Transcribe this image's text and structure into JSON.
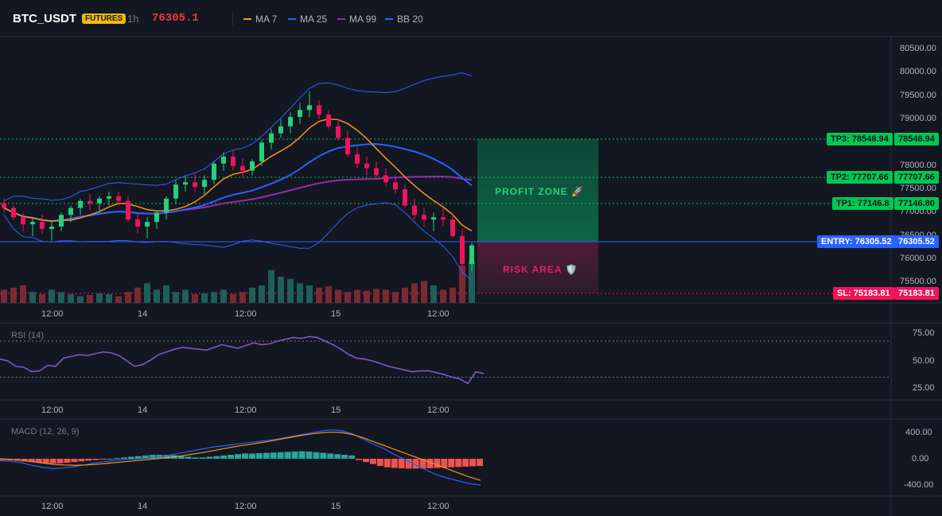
{
  "header": {
    "symbol": "BTC_USDT",
    "badge": "FUTURES",
    "timeframe": "1h",
    "last_price": "76305.1",
    "indicators": [
      {
        "label": "MA 7",
        "color": "#f7931a"
      },
      {
        "label": "MA 25",
        "color": "#2962ff"
      },
      {
        "label": "MA 99",
        "color": "#9c27b0"
      },
      {
        "label": "BB 20",
        "color": "#2962ff"
      }
    ]
  },
  "price_axis": [
    "80500.00",
    "80000.00",
    "79500.00",
    "79000.00",
    "78500.00",
    "78000.00",
    "77500.00",
    "77000.00",
    "76500.00",
    "76000.00",
    "75500.00"
  ],
  "time_labels": [
    "12:00",
    "14",
    "12:00",
    "15",
    "12:00"
  ],
  "levels": {
    "tp3": {
      "tag": "TP3: 78548.94",
      "value": "78548.94"
    },
    "tp2": {
      "tag": "TP2: 77707.66",
      "value": "77707.66"
    },
    "tp1": {
      "tag": "TP1: 77146.8",
      "value": "77146.80"
    },
    "entry": {
      "tag": "ENTRY: 76305.52",
      "value": "76305.52"
    },
    "sl": {
      "tag": "SL: 75183.81",
      "value": "75183.81"
    }
  },
  "zones": {
    "profit": "PROFIT ZONE 🚀",
    "risk": "RISK AREA 🛡️"
  },
  "rsi": {
    "title": "RSI (14)",
    "axis": [
      "75.00",
      "50.00",
      "25.00"
    ],
    "values": [
      50,
      48,
      42,
      41,
      36,
      37,
      43,
      42,
      51,
      53,
      55,
      54,
      56,
      58,
      57,
      54,
      48,
      42,
      44,
      49,
      55,
      58,
      61,
      63,
      62,
      61,
      60,
      63,
      66,
      64,
      62,
      65,
      68,
      66,
      67,
      70,
      72,
      74,
      73,
      75,
      74,
      70,
      66,
      61,
      55,
      51,
      50,
      48,
      45,
      42,
      40,
      38,
      36,
      37,
      37,
      35,
      33,
      30,
      28,
      23,
      36,
      34
    ]
  },
  "macd": {
    "title": "MACD (12, 26, 9)",
    "axis": [
      "400.00",
      "0.00",
      "-400.00"
    ],
    "hist": [
      -20,
      -25,
      -30,
      -40,
      -50,
      -60,
      -65,
      -70,
      -70,
      -60,
      -50,
      -40,
      -30,
      -20,
      -10,
      0,
      10,
      20,
      30,
      40,
      50,
      60,
      60,
      60,
      55,
      45,
      30,
      20,
      20,
      30,
      40,
      50,
      60,
      70,
      80,
      80,
      85,
      90,
      95,
      100,
      105,
      110,
      115,
      110,
      100,
      90,
      80,
      70,
      60,
      50,
      -20,
      -50,
      -80,
      -110,
      -130,
      -140,
      -145,
      -150,
      -150,
      -150,
      -145,
      -140,
      -135,
      -130,
      -125,
      -120,
      -115,
      -110
    ],
    "macd_line": [
      -30,
      -40,
      -60,
      -100,
      -130,
      -150,
      -140,
      -120,
      -90,
      -60,
      -40,
      -20,
      -10,
      0,
      10,
      30,
      60,
      90,
      120,
      150,
      180,
      200,
      220,
      240,
      260,
      280,
      300,
      330,
      360,
      390,
      420,
      440,
      430,
      380,
      300,
      220,
      150,
      60,
      -20,
      -100,
      -180,
      -250,
      -300,
      -340,
      -380,
      -400
    ],
    "signal_line": [
      0,
      -10,
      -25,
      -45,
      -65,
      -85,
      -95,
      -100,
      -95,
      -85,
      -70,
      -55,
      -40,
      -25,
      -10,
      5,
      25,
      45,
      70,
      95,
      125,
      155,
      185,
      210,
      235,
      260,
      290,
      320,
      350,
      375,
      395,
      405,
      400,
      370,
      320,
      260,
      200,
      140,
      80,
      20,
      -40,
      -100,
      -160,
      -220,
      -280,
      -330
    ]
  },
  "chart_data": {
    "type": "candlestick",
    "symbol": "BTC_USDT",
    "timeframe": "1h",
    "candles": [
      [
        77200,
        77300,
        77000,
        77100
      ],
      [
        77100,
        77150,
        76850,
        76900
      ],
      [
        76900,
        77000,
        76600,
        76750
      ],
      [
        76750,
        76900,
        76500,
        76800
      ],
      [
        76800,
        76950,
        76550,
        76650
      ],
      [
        76650,
        76800,
        76400,
        76700
      ],
      [
        76700,
        77000,
        76600,
        76950
      ],
      [
        76950,
        77150,
        76800,
        77100
      ],
      [
        77100,
        77300,
        76950,
        77250
      ],
      [
        77250,
        77400,
        77050,
        77200
      ],
      [
        77200,
        77350,
        77000,
        77300
      ],
      [
        77300,
        77450,
        77150,
        77350
      ],
      [
        77350,
        77450,
        77150,
        77250
      ],
      [
        77250,
        77350,
        76800,
        76850
      ],
      [
        76850,
        77000,
        76550,
        76700
      ],
      [
        76700,
        76900,
        76450,
        76800
      ],
      [
        76800,
        77050,
        76650,
        77000
      ],
      [
        77000,
        77350,
        76850,
        77300
      ],
      [
        77300,
        77700,
        77200,
        77600
      ],
      [
        77600,
        77800,
        77450,
        77650
      ],
      [
        77650,
        77850,
        77450,
        77550
      ],
      [
        77550,
        77800,
        77400,
        77700
      ],
      [
        77700,
        78100,
        77600,
        78050
      ],
      [
        78050,
        78300,
        77900,
        78200
      ],
      [
        78200,
        78350,
        77900,
        78000
      ],
      [
        78000,
        78150,
        77750,
        77900
      ],
      [
        77900,
        78150,
        77800,
        78100
      ],
      [
        78100,
        78550,
        78000,
        78500
      ],
      [
        78500,
        78800,
        78350,
        78700
      ],
      [
        78700,
        79000,
        78600,
        78850
      ],
      [
        78850,
        79150,
        78700,
        79050
      ],
      [
        79050,
        79350,
        78900,
        79200
      ],
      [
        79200,
        79600,
        79050,
        79300
      ],
      [
        79300,
        79400,
        79000,
        79100
      ],
      [
        79100,
        79200,
        78800,
        78850
      ],
      [
        78850,
        79000,
        78550,
        78600
      ],
      [
        78600,
        78750,
        78200,
        78250
      ],
      [
        78250,
        78400,
        77950,
        78050
      ],
      [
        78050,
        78200,
        77800,
        77950
      ],
      [
        77950,
        78100,
        77700,
        77800
      ],
      [
        77800,
        77950,
        77550,
        77650
      ],
      [
        77650,
        77800,
        77400,
        77500
      ],
      [
        77500,
        77600,
        77100,
        77150
      ],
      [
        77150,
        77300,
        76850,
        76950
      ],
      [
        76950,
        77100,
        76700,
        76850
      ],
      [
        76850,
        77000,
        76600,
        76900
      ],
      [
        76900,
        77100,
        76700,
        76850
      ],
      [
        76850,
        77000,
        76450,
        76500
      ],
      [
        76500,
        76650,
        75800,
        75900
      ],
      [
        75900,
        76350,
        75750,
        76300
      ]
    ],
    "volumes": [
      30,
      35,
      40,
      25,
      20,
      30,
      25,
      20,
      15,
      18,
      22,
      20,
      15,
      25,
      35,
      45,
      30,
      40,
      25,
      30,
      20,
      22,
      25,
      30,
      20,
      25,
      35,
      40,
      75,
      60,
      55,
      45,
      40,
      35,
      38,
      30,
      25,
      30,
      28,
      32,
      30,
      25,
      35,
      45,
      50,
      40,
      30,
      35,
      85,
      95
    ],
    "ma7_color": "#f7931a",
    "ma25_color": "#2962ff",
    "ma99_color": "#9c27b0",
    "bb_color": "#2962ff"
  }
}
